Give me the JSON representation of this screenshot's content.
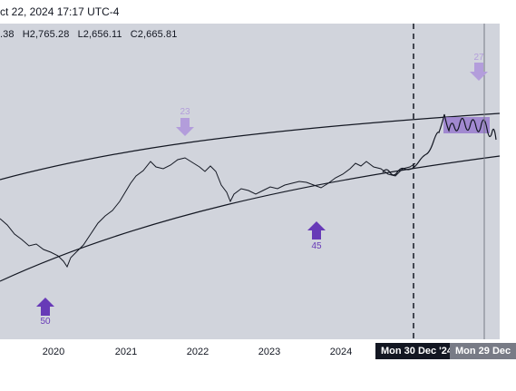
{
  "header": {
    "date_line": "ct 22, 2024 17:17 UTC-4"
  },
  "ohlc": {
    "open": ".38",
    "high": "H2,765.28",
    "low": "L2,656.11",
    "close": "C2,665.81"
  },
  "arrows": [
    {
      "label": "23",
      "direction": "down",
      "color": "#b39ddb"
    },
    {
      "label": "45",
      "direction": "up",
      "color": "#673ab7"
    },
    {
      "label": "50",
      "direction": "up",
      "color": "#673ab7"
    },
    {
      "label": "27",
      "direction": "down",
      "color": "#b39ddb"
    }
  ],
  "time_axis": {
    "ticks": [
      "2020",
      "2021",
      "2022",
      "2023",
      "2024"
    ],
    "crosshair_label": "Mon 30 Dec '24",
    "cursor_label": "Mon 29 Dec"
  },
  "colors": {
    "chart_bg": "#d1d4dc",
    "projection_box": "#9575cd",
    "line": "#131722"
  }
}
